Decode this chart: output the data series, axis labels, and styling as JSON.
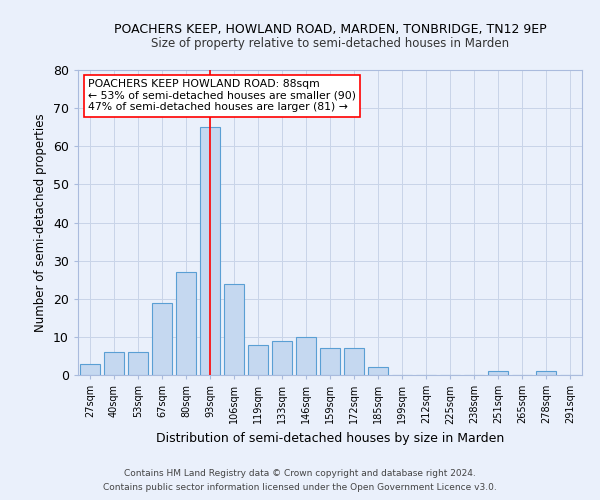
{
  "title": "POACHERS KEEP, HOWLAND ROAD, MARDEN, TONBRIDGE, TN12 9EP",
  "subtitle": "Size of property relative to semi-detached houses in Marden",
  "xlabel": "Distribution of semi-detached houses by size in Marden",
  "ylabel": "Number of semi-detached properties",
  "categories": [
    "27sqm",
    "40sqm",
    "53sqm",
    "67sqm",
    "80sqm",
    "93sqm",
    "106sqm",
    "119sqm",
    "133sqm",
    "146sqm",
    "159sqm",
    "172sqm",
    "185sqm",
    "199sqm",
    "212sqm",
    "225sqm",
    "238sqm",
    "251sqm",
    "265sqm",
    "278sqm",
    "291sqm"
  ],
  "values": [
    3,
    6,
    6,
    19,
    27,
    65,
    24,
    8,
    9,
    10,
    7,
    7,
    2,
    0,
    0,
    0,
    0,
    1,
    0,
    1,
    0
  ],
  "bar_color": "#c5d8f0",
  "bar_edge_color": "#5a9fd4",
  "bar_edge_width": 0.8,
  "red_line_x": 5.0,
  "annotation_text": "POACHERS KEEP HOWLAND ROAD: 88sqm\n← 53% of semi-detached houses are smaller (90)\n47% of semi-detached houses are larger (81) →",
  "ylim": [
    0,
    80
  ],
  "yticks": [
    0,
    10,
    20,
    30,
    40,
    50,
    60,
    70,
    80
  ],
  "grid_color": "#c8d4e8",
  "background_color": "#eaf0fb",
  "fig_background_color": "#eaf0fb",
  "footer1": "Contains HM Land Registry data © Crown copyright and database right 2024.",
  "footer2": "Contains public sector information licensed under the Open Government Licence v3.0."
}
